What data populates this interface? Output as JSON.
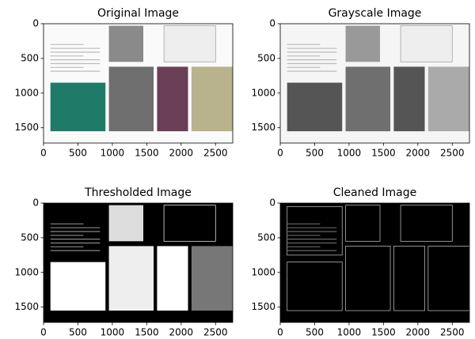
{
  "chart_data": [
    {
      "type": "image",
      "title": "Original Image",
      "xlim": [
        0,
        2750
      ],
      "ylim": [
        1720,
        0
      ],
      "xticks": [
        0,
        500,
        1000,
        1500,
        2000,
        2500
      ],
      "yticks": [
        0,
        500,
        1000,
        1500
      ]
    },
    {
      "type": "image",
      "title": "Grayscale Image",
      "xlim": [
        0,
        2750
      ],
      "ylim": [
        1720,
        0
      ],
      "xticks": [
        0,
        500,
        1000,
        1500,
        2000,
        2500
      ],
      "yticks": [
        0,
        500,
        1000,
        1500
      ]
    },
    {
      "type": "image",
      "title": "Thresholded Image",
      "xlim": [
        0,
        2750
      ],
      "ylim": [
        1720,
        0
      ],
      "xticks": [
        0,
        500,
        1000,
        1500,
        2000,
        2500
      ],
      "yticks": [
        0,
        500,
        1000,
        1500
      ]
    },
    {
      "type": "image",
      "title": "Cleaned Image",
      "xlim": [
        0,
        2750
      ],
      "ylim": [
        1720,
        0
      ],
      "xticks": [
        0,
        500,
        1000,
        1500,
        2000,
        2500
      ],
      "yticks": [
        0,
        500,
        1000,
        1500
      ]
    }
  ]
}
